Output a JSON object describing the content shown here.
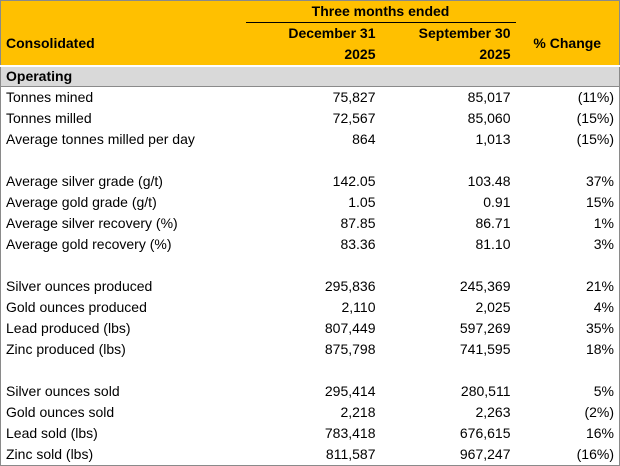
{
  "header": {
    "title": "Three months ended",
    "columns": [
      "Consolidated",
      [
        "December 31",
        "2025"
      ],
      [
        "September 30",
        "2025"
      ],
      "% Change"
    ]
  },
  "section": "Operating",
  "groups": [
    [
      [
        "Tonnes mined",
        "75,827",
        "85,017",
        "(11%)"
      ],
      [
        "Tonnes milled",
        "72,567",
        "85,060",
        "(15%)"
      ],
      [
        "Average tonnes milled per day",
        "864",
        "1,013",
        "(15%)"
      ]
    ],
    [
      [
        "Average silver grade (g/t)",
        "142.05",
        "103.48",
        "37%"
      ],
      [
        "Average gold grade (g/t)",
        "1.05",
        "0.91",
        "15%"
      ],
      [
        "Average silver recovery (%)",
        "87.85",
        "86.71",
        "1%"
      ],
      [
        "Average gold recovery (%)",
        "83.36",
        "81.10",
        "3%"
      ]
    ],
    [
      [
        "Silver ounces produced",
        "295,836",
        "245,369",
        "21%"
      ],
      [
        "Gold ounces produced",
        "2,110",
        "2,025",
        "4%"
      ],
      [
        "Lead produced (lbs)",
        "807,449",
        "597,269",
        "35%"
      ],
      [
        "Zinc produced (lbs)",
        "875,798",
        "741,595",
        "18%"
      ]
    ],
    [
      [
        "Silver ounces sold",
        "295,414",
        "280,511",
        "5%"
      ],
      [
        "Gold ounces sold",
        "2,218",
        "2,263",
        "(2%)"
      ],
      [
        "Lead sold (lbs)",
        "783,418",
        "676,615",
        "16%"
      ],
      [
        "Zinc sold (lbs)",
        "811,587",
        "967,247",
        "(16%)"
      ]
    ]
  ]
}
